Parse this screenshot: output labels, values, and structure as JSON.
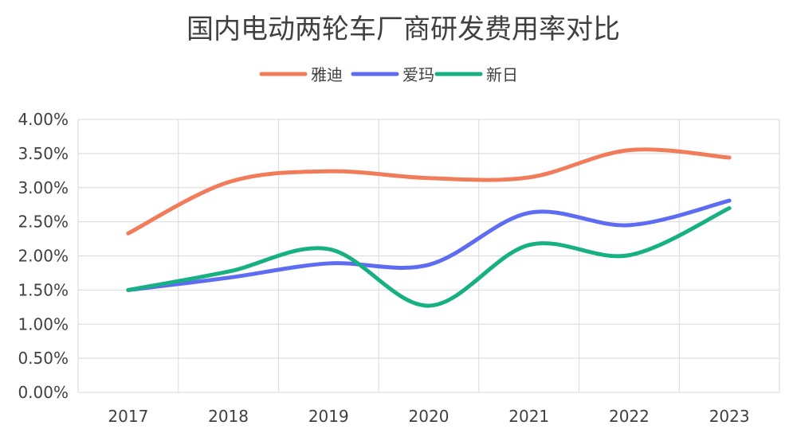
{
  "chart_data": {
    "type": "line",
    "title": "国内电动两轮车厂商研发费用率对比",
    "categories": [
      "2017",
      "2018",
      "2019",
      "2020",
      "2021",
      "2022",
      "2023"
    ],
    "yticks": [
      "0.00%",
      "0.50%",
      "1.00%",
      "1.50%",
      "2.00%",
      "2.50%",
      "3.00%",
      "3.50%",
      "4.00%"
    ],
    "ylim": [
      0,
      4
    ],
    "grid": true,
    "smooth": true,
    "legend_position": "top",
    "series": [
      {
        "name": "雅迪",
        "color": "#F07C5A",
        "values": [
          2.33,
          3.08,
          3.24,
          3.14,
          3.15,
          3.55,
          3.44
        ]
      },
      {
        "name": "爱玛",
        "color": "#5D6CF0",
        "values": [
          1.5,
          1.68,
          1.89,
          1.87,
          2.63,
          2.45,
          2.81
        ]
      },
      {
        "name": "新日",
        "color": "#17B083",
        "values": [
          1.5,
          1.77,
          2.1,
          1.27,
          2.16,
          2.01,
          2.7
        ]
      }
    ]
  }
}
